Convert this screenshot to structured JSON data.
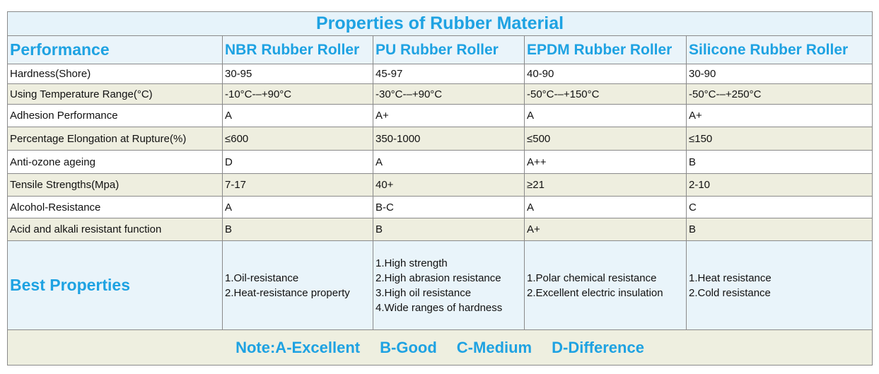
{
  "title": "Properties of Rubber Material",
  "header": [
    "Performance",
    "NBR Rubber Roller",
    "PU Rubber Roller",
    "EPDM Rubber Roller",
    "Silicone Rubber Roller"
  ],
  "rows": [
    [
      "Hardness(Shore)",
      "30-95",
      "45-97",
      "40-90",
      "30-90"
    ],
    [
      "Using Temperature Range(°C)",
      "-10°C-–+90°C",
      "-30°C-–+90°C",
      "-50°C-–+150°C",
      "-50°C-–+250°C"
    ],
    [
      "Adhesion Performance",
      "A",
      "A+",
      "A",
      "A+"
    ],
    [
      "Percentage Elongation at Rupture(%)",
      "≤600",
      "350-1000",
      "≤500",
      "≤150"
    ],
    [
      "Anti-ozone ageing",
      "D",
      "A",
      "A++",
      "B"
    ],
    [
      "Tensile Strengths(Mpa)",
      "7-17",
      "40+",
      "≥21",
      "2-10"
    ],
    [
      "Alcohol-Resistance",
      "A",
      "B-C",
      "A",
      "C"
    ],
    [
      "Acid and alkali resistant function",
      "B",
      "B",
      "A+",
      "B"
    ]
  ],
  "best": {
    "label": "Best Properties",
    "cells": [
      [
        "1.Oil-resistance",
        "2.Heat-resistance property"
      ],
      [
        "1.High strength",
        "2.High abrasion resistance",
        "3.High oil resistance",
        "4.Wide ranges of hardness"
      ],
      [
        "1.Polar chemical resistance",
        "2.Excellent electric insulation"
      ],
      [
        "1.Heat resistance",
        "2.Cold resistance"
      ]
    ]
  },
  "note": [
    "Note:A-Excellent",
    "B-Good",
    "C-Medium",
    "D-Difference"
  ]
}
